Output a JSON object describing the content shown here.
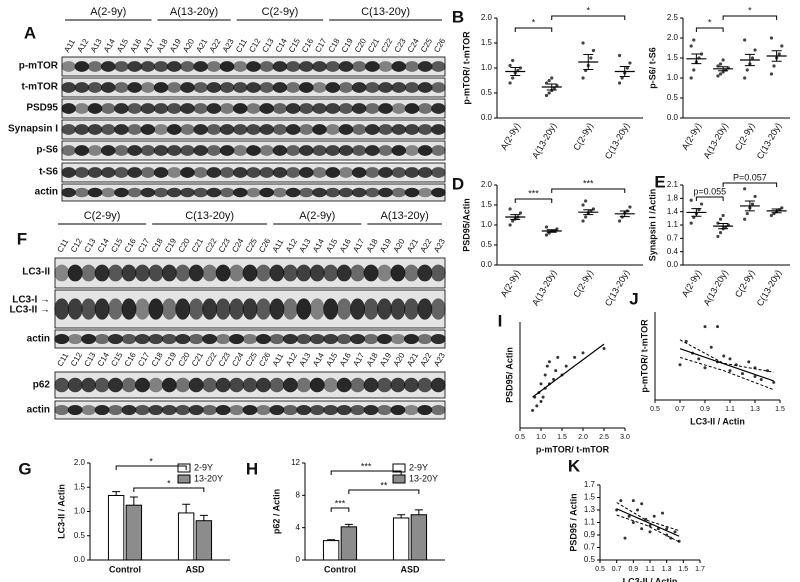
{
  "blots": [
    {
      "panel_label": "A",
      "groups": [
        "A(2-9y)",
        "A(13-20y)",
        "C(2-9y)",
        "C(13-20y)"
      ],
      "lanes": [
        "A11",
        "A12",
        "A13",
        "A14",
        "A15",
        "A16",
        "A17",
        "A18",
        "A19",
        "A20",
        "A21",
        "A22",
        "A23",
        "C11",
        "C12",
        "C13",
        "C14",
        "C15",
        "C16",
        "C17",
        "C18",
        "C19",
        "C20",
        "C21",
        "C22",
        "C23",
        "C24",
        "C25",
        "C26"
      ],
      "rows": [
        "p-mTOR",
        "t-mTOR",
        "PSD95",
        "Synapsin I",
        "p-S6",
        "t-S6",
        "actin"
      ]
    },
    {
      "panel_label": "F",
      "groups": [
        "C(2-9y)",
        "C(13-20y)",
        "A(2-9y)",
        "A(13-20y)"
      ],
      "lanes": [
        "C11",
        "C12",
        "C13",
        "C14",
        "C15",
        "C16",
        "C17",
        "C18",
        "C19",
        "C20",
        "C21",
        "C22",
        "C23",
        "C24",
        "C25",
        "C26",
        "A11",
        "A12",
        "A13",
        "A14",
        "A15",
        "A16",
        "A17",
        "A18",
        "A19",
        "A20",
        "A21",
        "A22",
        "A23"
      ],
      "rows": [
        "LC3-II",
        "LC3-I →",
        "LC3-II →",
        "actin",
        "p62",
        "actin"
      ]
    }
  ],
  "chart_data": [
    {
      "type": "dotplot",
      "panel_label": "B",
      "ylabel": "p-mTOR/ t-mTOR",
      "categories": [
        "A(2-9y)",
        "A(13-20y)",
        "C(2-9y)",
        "C(13-20y)"
      ],
      "points": [
        [
          0.7,
          0.8,
          0.9,
          0.95,
          1.0,
          1.05,
          1.15
        ],
        [
          0.45,
          0.5,
          0.55,
          0.6,
          0.65,
          0.7,
          0.75,
          0.8
        ],
        [
          0.8,
          0.95,
          1.05,
          1.2,
          1.35,
          1.5
        ],
        [
          0.7,
          0.8,
          0.9,
          1.0,
          1.1,
          1.25
        ]
      ],
      "means": [
        0.93,
        0.62,
        1.12,
        0.93
      ],
      "sems": [
        0.08,
        0.06,
        0.15,
        0.1
      ],
      "ylim": [
        0,
        2
      ],
      "yticks": [
        {
          "value": 0,
          "label": "0.0"
        },
        {
          "value": 0.5,
          "label": "0.5"
        },
        {
          "value": 1,
          "label": "1.0"
        },
        {
          "value": 1.5,
          "label": "1.5"
        },
        {
          "value": 2,
          "label": "2.0"
        }
      ],
      "annotations": [
        "*",
        "*"
      ],
      "color": "#444444"
    },
    {
      "type": "dotplot",
      "ylabel": "p-S6/ t-S6",
      "categories": [
        "A(2-9y)",
        "A(13-20y)",
        "C(2-9y)",
        "C(13-20y)"
      ],
      "points": [
        [
          1.0,
          1.2,
          1.4,
          1.5,
          1.6,
          1.8,
          1.95
        ],
        [
          1.05,
          1.1,
          1.15,
          1.2,
          1.25,
          1.3,
          1.35,
          1.45
        ],
        [
          1.0,
          1.2,
          1.35,
          1.5,
          1.7,
          1.95
        ],
        [
          1.1,
          1.3,
          1.5,
          1.6,
          1.8,
          2.0
        ]
      ],
      "means": [
        1.48,
        1.23,
        1.45,
        1.55
      ],
      "sems": [
        0.12,
        0.05,
        0.14,
        0.13
      ],
      "ylim": [
        0,
        2.5
      ],
      "yticks": [
        {
          "value": 0,
          "label": "0.0"
        },
        {
          "value": 0.5,
          "label": "0.5"
        },
        {
          "value": 1,
          "label": "1.0"
        },
        {
          "value": 1.5,
          "label": "1.5"
        },
        {
          "value": 2,
          "label": "2.0"
        },
        {
          "value": 2.5,
          "label": "2.5"
        }
      ],
      "annotations": [
        "*",
        "*"
      ],
      "color": "#444444"
    },
    {
      "type": "dotplot",
      "panel_label": "D",
      "ylabel": "PSD95/Actin",
      "categories": [
        "A(2-9y)",
        "A(13-20y)",
        "C(2-9y)",
        "C(13-20y)"
      ],
      "points": [
        [
          1.0,
          1.1,
          1.15,
          1.2,
          1.3,
          1.4
        ],
        [
          0.75,
          0.8,
          0.85,
          0.85,
          0.9,
          0.95
        ],
        [
          1.1,
          1.2,
          1.3,
          1.35,
          1.4,
          1.5,
          1.6
        ],
        [
          1.1,
          1.2,
          1.3,
          1.35,
          1.45
        ]
      ],
      "means": [
        1.2,
        0.85,
        1.32,
        1.28
      ],
      "sems": [
        0.06,
        0.03,
        0.06,
        0.07
      ],
      "ylim": [
        0,
        2
      ],
      "yticks": [
        {
          "value": 0,
          "label": "0.0"
        },
        {
          "value": 0.5,
          "label": "0.5"
        },
        {
          "value": 1,
          "label": "1.0"
        },
        {
          "value": 1.5,
          "label": "1.5"
        },
        {
          "value": 2,
          "label": "2.0"
        }
      ],
      "annotations": [
        "***",
        "***"
      ],
      "color": "#444444"
    },
    {
      "type": "dotplot",
      "panel_label": "E",
      "ylabel": "Synapsin I /Actin",
      "categories": [
        "A(2-9y)",
        "A(13-20y)",
        "C(2-9y)",
        "C(13-20y)"
      ],
      "points": [
        [
          1.1,
          1.25,
          1.35,
          1.45,
          1.6,
          1.7
        ],
        [
          0.75,
          0.85,
          0.95,
          1.0,
          1.05,
          1.1,
          1.2,
          1.3
        ],
        [
          1.2,
          1.35,
          1.5,
          1.6,
          1.8,
          2.0
        ],
        [
          1.3,
          1.35,
          1.4,
          1.45,
          1.5
        ]
      ],
      "means": [
        1.38,
        1.02,
        1.55,
        1.42
      ],
      "sems": [
        0.1,
        0.07,
        0.13,
        0.05
      ],
      "ylim": [
        0,
        2.1
      ],
      "yticks": [
        {
          "value": 0,
          "label": "0.0"
        },
        {
          "value": 0.35,
          "label": "0.4"
        },
        {
          "value": 0.7,
          "label": "0.7"
        },
        {
          "value": 1.05,
          "label": "1.1"
        },
        {
          "value": 1.4,
          "label": "1.4"
        },
        {
          "value": 1.75,
          "label": "1.8"
        },
        {
          "value": 2.1,
          "label": "2.1"
        }
      ],
      "annotations": [
        "p=0.055",
        "P=0.057"
      ],
      "color": "#444444"
    },
    {
      "type": "scatter",
      "panel_label": "I",
      "xlabel": "p-mTOR/ t-mTOR",
      "ylabel": "PSD95/ Actin",
      "x": [
        0.8,
        0.85,
        0.9,
        0.95,
        1.0,
        1.0,
        1.05,
        1.1,
        1.1,
        1.15,
        1.2,
        1.2,
        1.3,
        1.35,
        1.4,
        1.5,
        1.6,
        1.8,
        2.0,
        2.5
      ],
      "y": [
        0.8,
        0.95,
        0.85,
        1.0,
        0.9,
        1.1,
        0.95,
        1.2,
        1.05,
        1.3,
        1.1,
        1.35,
        1.15,
        1.25,
        1.4,
        1.2,
        1.3,
        1.4,
        1.45,
        1.5
      ],
      "fit": {
        "x": [
          0.8,
          2.5
        ],
        "y": [
          0.95,
          1.55
        ]
      },
      "xlim": [
        0.5,
        3.0
      ],
      "ylim": [
        0.6,
        1.8
      ],
      "xticks": [
        {
          "value": 0.5,
          "label": "0.5"
        },
        {
          "value": 1,
          "label": "1.0"
        },
        {
          "value": 1.5,
          "label": "1.5"
        },
        {
          "value": 2,
          "label": "2.0"
        },
        {
          "value": 2.5,
          "label": "2.5"
        },
        {
          "value": 3,
          "label": "3.0"
        }
      ],
      "color": "#333333"
    },
    {
      "type": "scatter",
      "panel_label": "J",
      "xlabel": "LC3-II / Actin",
      "ylabel": "p-mTOR/ t-mTOR",
      "x": [
        0.7,
        0.75,
        0.8,
        0.85,
        0.9,
        0.9,
        0.95,
        1.0,
        1.0,
        1.05,
        1.1,
        1.1,
        1.15,
        1.2,
        1.25,
        1.3,
        1.3,
        1.35,
        1.4,
        1.45
      ],
      "y": [
        1.2,
        2.0,
        1.6,
        1.4,
        2.5,
        1.1,
        1.8,
        1.3,
        2.5,
        1.5,
        1.0,
        1.4,
        1.2,
        0.9,
        1.3,
        0.8,
        1.1,
        0.7,
        1.0,
        0.6
      ],
      "fit": {
        "x": [
          0.7,
          1.45
        ],
        "y": [
          1.75,
          0.65
        ]
      },
      "band": {
        "x": [
          0.7,
          1.05,
          1.45
        ],
        "upper": [
          2.05,
          1.25,
          0.95
        ],
        "lower": [
          1.45,
          1.0,
          0.35
        ]
      },
      "xlim": [
        0.5,
        1.5
      ],
      "ylim": [
        0,
        3
      ],
      "xticks": [
        {
          "value": 0.5,
          "label": "0.5"
        },
        {
          "value": 0.7,
          "label": "0.7"
        },
        {
          "value": 0.9,
          "label": "0.9"
        },
        {
          "value": 1.1,
          "label": "1.1"
        },
        {
          "value": 1.3,
          "label": "1.3"
        },
        {
          "value": 1.5,
          "label": "1.5"
        }
      ],
      "color": "#333333"
    },
    {
      "type": "scatter",
      "panel_label": "K",
      "xlabel": "LC3-II / Actin",
      "ylabel": "PSD95 / Actin",
      "x": [
        0.7,
        0.75,
        0.8,
        0.85,
        0.9,
        0.9,
        0.95,
        1.0,
        1.0,
        1.05,
        1.1,
        1.1,
        1.15,
        1.2,
        1.25,
        1.3,
        1.3,
        1.35,
        1.4,
        1.45
      ],
      "y": [
        1.3,
        1.45,
        0.85,
        1.2,
        1.45,
        1.1,
        1.3,
        1.0,
        1.4,
        1.15,
        0.95,
        1.05,
        1.2,
        1.0,
        1.25,
        0.9,
        1.0,
        0.85,
        0.95,
        0.8
      ],
      "fit": {
        "x": [
          0.7,
          1.45
        ],
        "y": [
          1.32,
          0.88
        ]
      },
      "band": {
        "x": [
          0.7,
          1.05,
          1.45
        ],
        "upper": [
          1.42,
          1.14,
          0.97
        ],
        "lower": [
          1.22,
          1.06,
          0.79
        ]
      },
      "xlim": [
        0.5,
        1.7
      ],
      "ylim": [
        0.5,
        1.7
      ],
      "xticks": [
        {
          "value": 0.5,
          "label": "0.5"
        },
        {
          "value": 0.7,
          "label": "0.7"
        },
        {
          "value": 0.9,
          "label": "0.9"
        },
        {
          "value": 1.1,
          "label": "1.1"
        },
        {
          "value": 1.3,
          "label": "1.3"
        },
        {
          "value": 1.5,
          "label": "1.5"
        },
        {
          "value": 1.7,
          "label": "1.7"
        }
      ],
      "yticks": [
        {
          "value": 0.5,
          "label": "0.5"
        },
        {
          "value": 0.7,
          "label": "0.7"
        },
        {
          "value": 0.9,
          "label": "0.9"
        },
        {
          "value": 1.1,
          "label": "1.1"
        },
        {
          "value": 1.3,
          "label": "1.3"
        },
        {
          "value": 1.5,
          "label": "1.5"
        },
        {
          "value": 1.7,
          "label": "1.7"
        }
      ],
      "color": "#333333"
    },
    {
      "type": "bar",
      "panel_label": "G",
      "ylabel": "LC3-II / Actin",
      "categories": [
        "Control",
        "ASD"
      ],
      "series": [
        {
          "name": "2-9Y",
          "color": "#ffffff",
          "values": [
            1.33,
            0.97
          ],
          "errors": [
            0.08,
            0.18
          ]
        },
        {
          "name": "13-20Y",
          "color": "#8c8c8c",
          "values": [
            1.13,
            0.81
          ],
          "errors": [
            0.17,
            0.11
          ]
        }
      ],
      "ylim": [
        0,
        2
      ],
      "yticks": [
        {
          "value": 0,
          "label": "0.0"
        },
        {
          "value": 0.5,
          "label": "0.5"
        },
        {
          "value": 1,
          "label": "1.0"
        },
        {
          "value": 1.5,
          "label": "1.5"
        },
        {
          "value": 2,
          "label": "2.0"
        }
      ],
      "annotations": [
        "*",
        "*"
      ]
    },
    {
      "type": "bar",
      "panel_label": "H",
      "ylabel": "p62 / Actin",
      "categories": [
        "Control",
        "ASD"
      ],
      "series": [
        {
          "name": "2-9Y",
          "color": "#ffffff",
          "values": [
            2.4,
            5.2
          ],
          "errors": [
            0.1,
            0.4
          ]
        },
        {
          "name": "13-20Y",
          "color": "#8c8c8c",
          "values": [
            4.1,
            5.6
          ],
          "errors": [
            0.3,
            0.6
          ]
        }
      ],
      "ylim": [
        0,
        12
      ],
      "yticks": [
        0,
        4,
        8,
        12
      ],
      "annotations": [
        "***",
        "***",
        "**"
      ]
    }
  ]
}
